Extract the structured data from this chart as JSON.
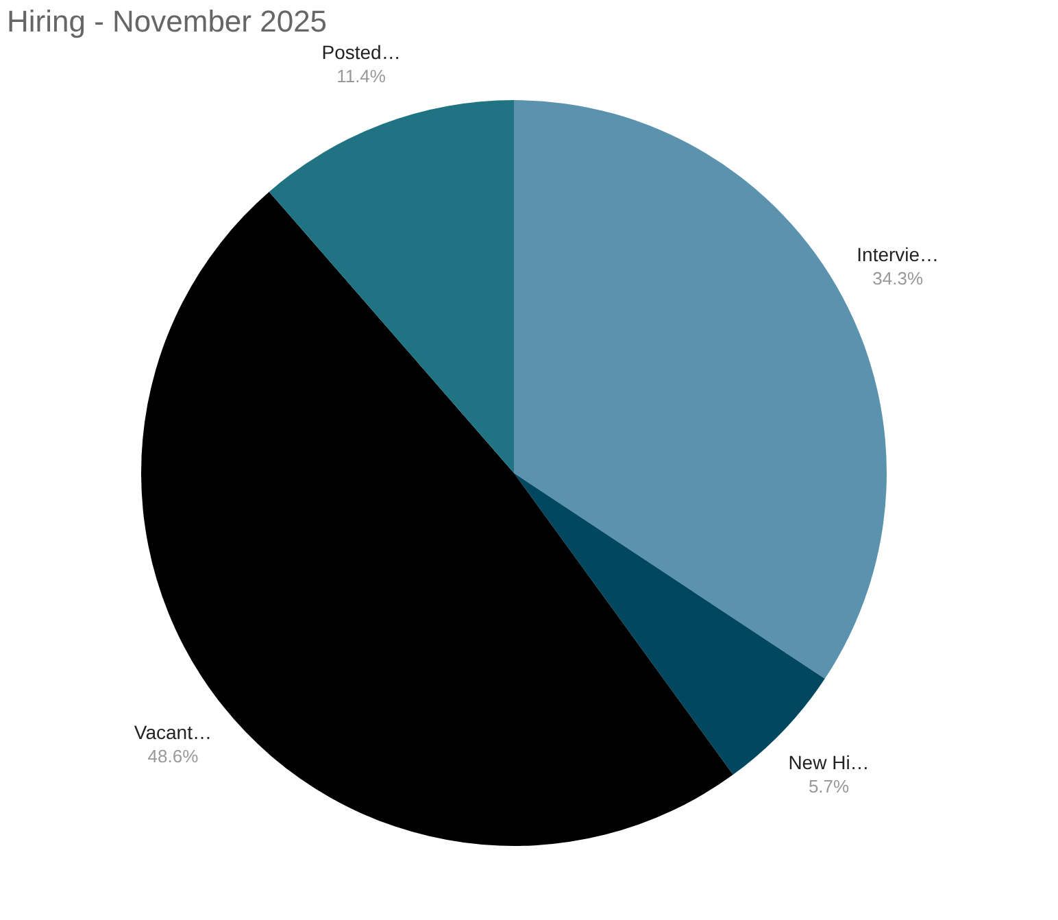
{
  "chart_data": {
    "type": "pie",
    "title": "Hiring - November 2025",
    "categories": [
      "Intervie…",
      "New Hi…",
      "Vacant…",
      "Posted…"
    ],
    "values": [
      34.3,
      5.7,
      48.6,
      11.4
    ],
    "colors": [
      "#5b93ae",
      "#00475f",
      "#000000",
      "#1f7383"
    ],
    "value_labels": [
      "34.3%",
      "5.7%",
      "48.6%",
      "11.4%"
    ],
    "legend": false
  }
}
